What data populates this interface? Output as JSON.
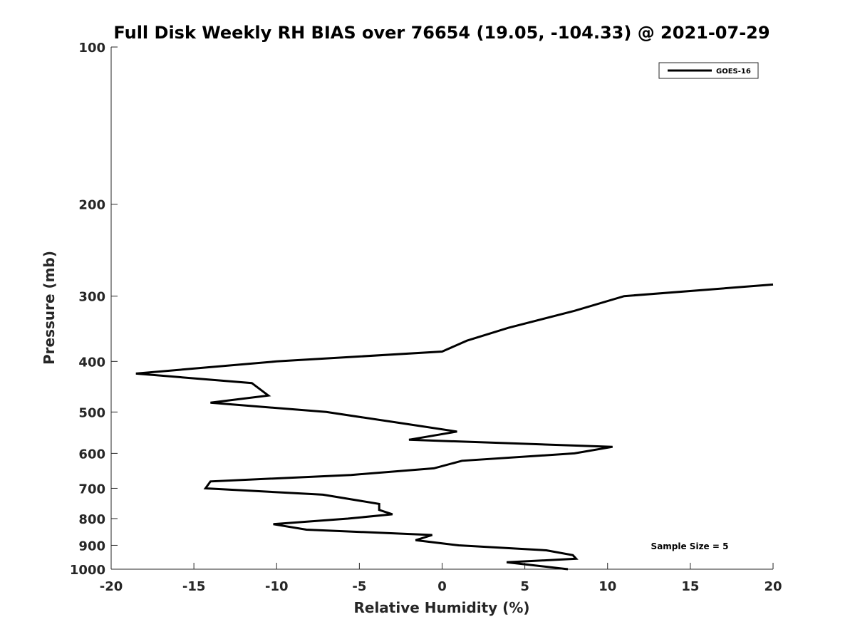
{
  "chart_data": {
    "type": "line",
    "title": "Full Disk Weekly RH BIAS over 76654 (19.05, -104.33) @ 2021-07-29",
    "xlabel": "Relative Humidity (%)",
    "ylabel": "Pressure (mb)",
    "xlim": [
      -20,
      20
    ],
    "ylim": [
      100,
      1000
    ],
    "y_scale": "log",
    "y_direction": "reversed",
    "grid": false,
    "legend_position": "top-right",
    "x_ticks": [
      -20,
      -15,
      -10,
      -5,
      0,
      5,
      10,
      15,
      20
    ],
    "y_ticks": [
      100,
      200,
      300,
      400,
      500,
      600,
      700,
      800,
      900,
      1000
    ],
    "annotation": "Sample Size = 5",
    "series": [
      {
        "name": "GOES-16",
        "color": "#000000",
        "points": [
          {
            "x": 20.0,
            "y": 285
          },
          {
            "x": 11.0,
            "y": 300
          },
          {
            "x": 8.0,
            "y": 320
          },
          {
            "x": 4.0,
            "y": 345
          },
          {
            "x": 1.5,
            "y": 365
          },
          {
            "x": 0.0,
            "y": 383
          },
          {
            "x": -10.0,
            "y": 400
          },
          {
            "x": -18.5,
            "y": 422
          },
          {
            "x": -11.5,
            "y": 440
          },
          {
            "x": -10.5,
            "y": 465
          },
          {
            "x": -14.0,
            "y": 480
          },
          {
            "x": -7.0,
            "y": 500
          },
          {
            "x": -2.5,
            "y": 525
          },
          {
            "x": 0.9,
            "y": 545
          },
          {
            "x": -2.0,
            "y": 565
          },
          {
            "x": 10.3,
            "y": 583
          },
          {
            "x": 8.0,
            "y": 600
          },
          {
            "x": 1.2,
            "y": 620
          },
          {
            "x": -0.5,
            "y": 641
          },
          {
            "x": -5.5,
            "y": 660
          },
          {
            "x": -14.0,
            "y": 679
          },
          {
            "x": -14.3,
            "y": 700
          },
          {
            "x": -7.2,
            "y": 720
          },
          {
            "x": -3.8,
            "y": 750
          },
          {
            "x": -3.8,
            "y": 770
          },
          {
            "x": -3.0,
            "y": 785
          },
          {
            "x": -5.7,
            "y": 800
          },
          {
            "x": -10.2,
            "y": 820
          },
          {
            "x": -8.2,
            "y": 840
          },
          {
            "x": -0.6,
            "y": 860
          },
          {
            "x": -1.6,
            "y": 880
          },
          {
            "x": 1.0,
            "y": 900
          },
          {
            "x": 6.3,
            "y": 920
          },
          {
            "x": 7.9,
            "y": 940
          },
          {
            "x": 8.1,
            "y": 955
          },
          {
            "x": 3.9,
            "y": 970
          },
          {
            "x": 7.6,
            "y": 1000
          }
        ]
      }
    ]
  }
}
